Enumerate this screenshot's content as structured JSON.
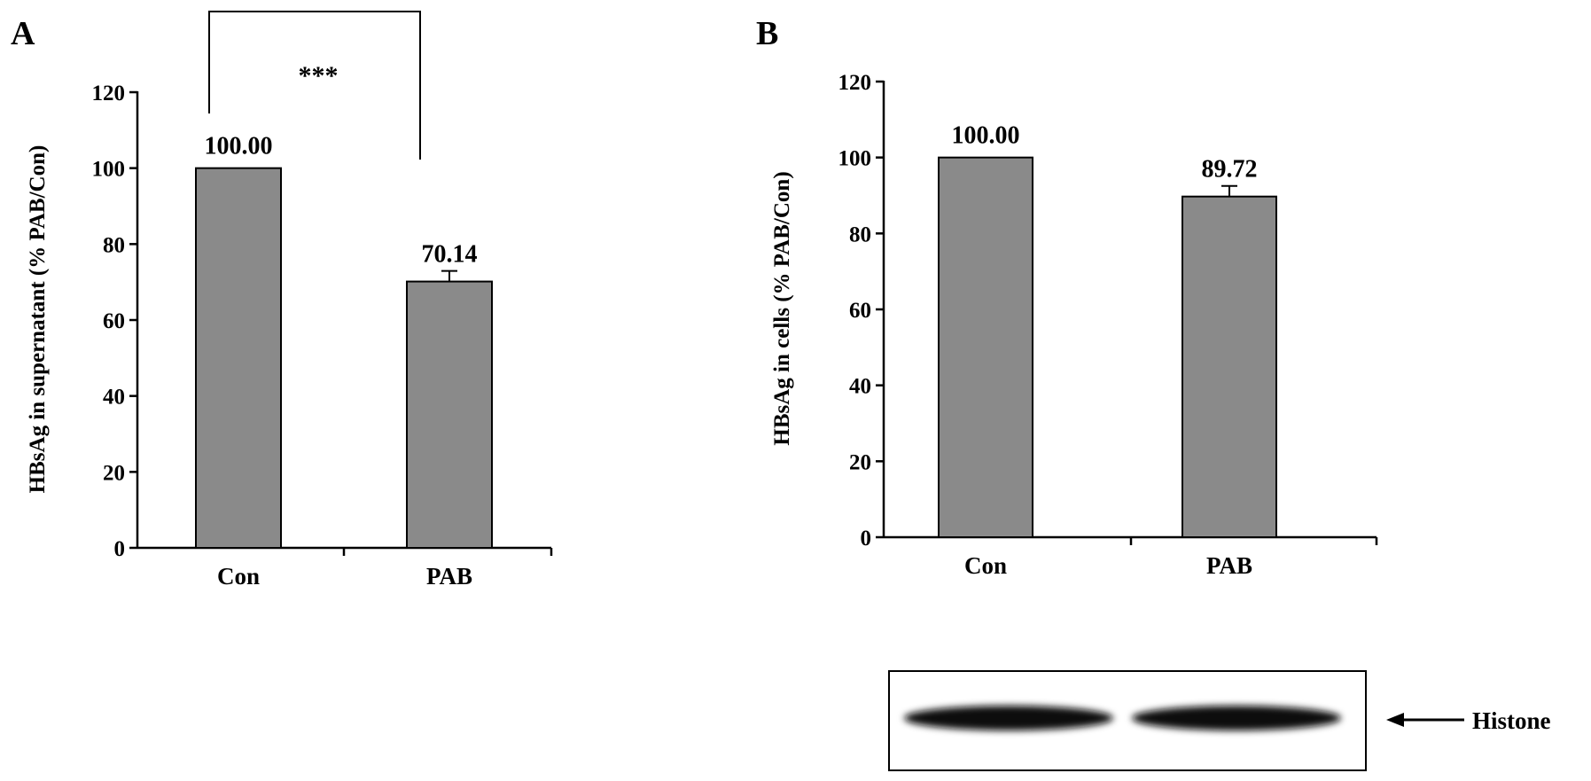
{
  "colors": {
    "bar_fill": "#8a8a8a",
    "axis": "#000000",
    "background": "#ffffff"
  },
  "chart_data": [
    {
      "panel_label": "A",
      "type": "bar",
      "categories": [
        "Con",
        "PAB"
      ],
      "values": [
        100.0,
        70.14
      ],
      "errors": [
        0,
        2.8
      ],
      "value_labels": [
        "100.00",
        "70.14"
      ],
      "ylabel": "HBsAg in supernatant (% PAB/Con)",
      "ylim": [
        0,
        120
      ],
      "yticks": [
        0,
        20,
        40,
        60,
        80,
        100,
        120
      ],
      "significance": {
        "between": [
          "Con",
          "PAB"
        ],
        "label": "***"
      },
      "grid": false,
      "legend": "none"
    },
    {
      "panel_label": "B",
      "type": "bar",
      "categories": [
        "Con",
        "PAB"
      ],
      "values": [
        100.0,
        89.72
      ],
      "errors": [
        0,
        2.8
      ],
      "value_labels": [
        "100.00",
        "89.72"
      ],
      "ylabel": "HBsAg in cells (% PAB/Con)",
      "ylim": [
        0,
        120
      ],
      "yticks": [
        0,
        20,
        40,
        60,
        80,
        100,
        120
      ],
      "grid": false,
      "legend": "none",
      "blot": {
        "label": "Histone",
        "arrow_icon": "left-arrow-icon"
      }
    }
  ]
}
